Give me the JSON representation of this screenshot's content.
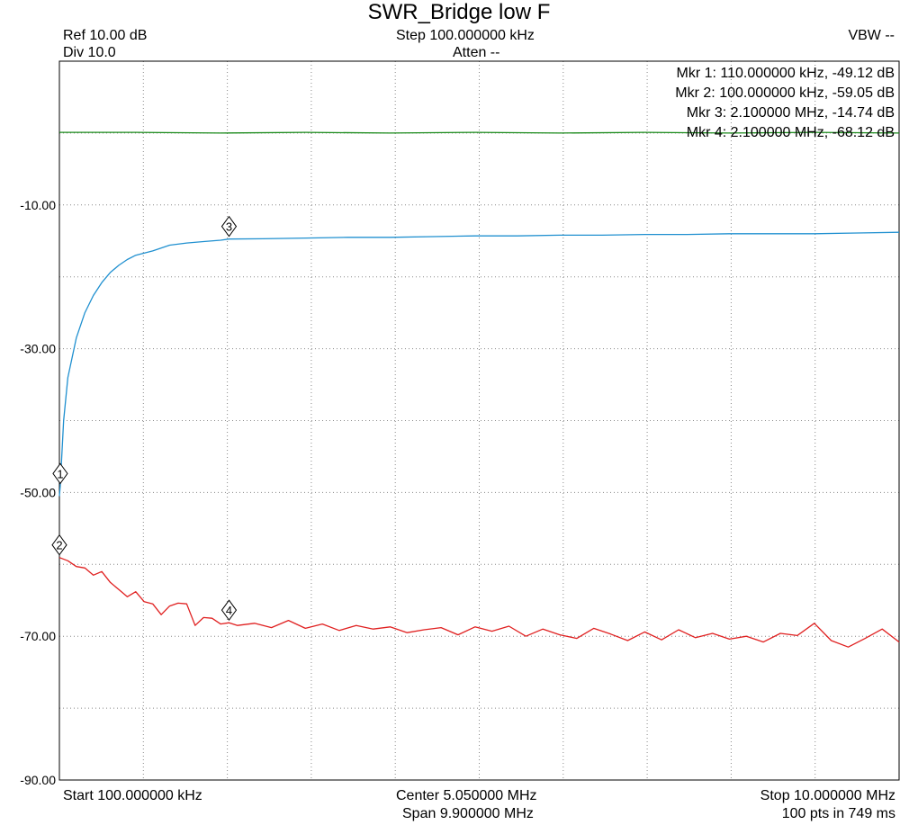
{
  "title": "SWR_Bridge low F",
  "header": {
    "ref": "Ref 10.00 dB",
    "div": "Div 10.0",
    "step": "Step 100.000000 kHz",
    "atten": "Atten --",
    "vbw": "VBW --"
  },
  "footer": {
    "start": "Start 100.000000 kHz",
    "center": "Center 5.050000 MHz",
    "span": "Span 9.900000 MHz",
    "stop": "Stop 10.000000 MHz",
    "points": "100 pts in 749 ms"
  },
  "markers": [
    {
      "id": "1",
      "label": "Mkr 1: 110.000000 kHz, -49.12 dB",
      "x": 0.11,
      "y": -49.12,
      "series": 1
    },
    {
      "id": "2",
      "label": "Mkr 2: 100.000000 kHz, -59.05 dB",
      "x": 0.1,
      "y": -59.05,
      "series": 2
    },
    {
      "id": "3",
      "label": "Mkr 3: 2.100000 MHz, -14.74 dB",
      "x": 2.1,
      "y": -14.74,
      "series": 1
    },
    {
      "id": "4",
      "label": "Mkr 4: 2.100000 MHz, -68.12 dB",
      "x": 2.1,
      "y": -68.12,
      "series": 2
    }
  ],
  "colors": {
    "grid": "#888888",
    "series_green": "#1a8a1a",
    "series_blue": "#2090d0",
    "series_red": "#e02020"
  },
  "chart_data": {
    "type": "line",
    "title": "SWR_Bridge low F",
    "x_unit": "MHz",
    "xlim": [
      0.1,
      10.0
    ],
    "ylim": [
      -90,
      10
    ],
    "ytick_labels": [
      "-10.00",
      "-30.00",
      "-50.00",
      "-70.00",
      "-90.00"
    ],
    "yticks": [
      -10,
      -30,
      -50,
      -70,
      -90
    ],
    "grid": true,
    "series": [
      {
        "color": "#1a8a1a",
        "x": [
          0.1,
          1.0,
          2.0,
          3.0,
          4.0,
          5.0,
          6.0,
          7.0,
          8.0,
          9.0,
          10.0
        ],
        "y": [
          0.1,
          0.1,
          0.0,
          0.1,
          0.0,
          0.1,
          0.0,
          0.1,
          0.0,
          0.1,
          0.0
        ]
      },
      {
        "color": "#2090d0",
        "x": [
          0.1,
          0.11,
          0.15,
          0.2,
          0.3,
          0.4,
          0.5,
          0.6,
          0.7,
          0.8,
          0.9,
          1.0,
          1.2,
          1.4,
          1.6,
          1.8,
          2.0,
          2.1,
          2.5,
          3.0,
          3.5,
          4.0,
          4.5,
          5.0,
          5.5,
          6.0,
          6.5,
          7.0,
          7.5,
          8.0,
          8.5,
          9.0,
          9.5,
          10.0
        ],
        "y": [
          -50.5,
          -49.12,
          -40.0,
          -34.0,
          -28.5,
          -25.0,
          -22.6,
          -20.8,
          -19.4,
          -18.4,
          -17.6,
          -17.0,
          -16.4,
          -15.6,
          -15.3,
          -15.1,
          -14.9,
          -14.74,
          -14.7,
          -14.6,
          -14.5,
          -14.5,
          -14.4,
          -14.3,
          -14.3,
          -14.2,
          -14.2,
          -14.1,
          -14.1,
          -14.0,
          -14.0,
          -14.0,
          -13.9,
          -13.8
        ]
      },
      {
        "color": "#e02020",
        "x": [
          0.1,
          0.2,
          0.3,
          0.4,
          0.5,
          0.6,
          0.7,
          0.8,
          0.9,
          1.0,
          1.1,
          1.2,
          1.3,
          1.4,
          1.5,
          1.6,
          1.7,
          1.8,
          1.9,
          2.0,
          2.1,
          2.2,
          2.4,
          2.6,
          2.8,
          3.0,
          3.2,
          3.4,
          3.6,
          3.8,
          4.0,
          4.2,
          4.4,
          4.6,
          4.8,
          5.0,
          5.2,
          5.4,
          5.6,
          5.8,
          6.0,
          6.2,
          6.4,
          6.6,
          6.8,
          7.0,
          7.2,
          7.4,
          7.6,
          7.8,
          8.0,
          8.2,
          8.4,
          8.6,
          8.8,
          9.0,
          9.2,
          9.4,
          9.6,
          9.8,
          10.0
        ],
        "y": [
          -59.05,
          -59.5,
          -60.3,
          -60.5,
          -61.5,
          -61.0,
          -62.5,
          -63.5,
          -64.5,
          -63.8,
          -65.2,
          -65.5,
          -67.0,
          -65.8,
          -65.4,
          -65.5,
          -68.5,
          -67.4,
          -67.5,
          -68.3,
          -68.12,
          -68.5,
          -68.2,
          -68.8,
          -67.8,
          -68.9,
          -68.3,
          -69.2,
          -68.5,
          -69.0,
          -68.7,
          -69.5,
          -69.1,
          -68.8,
          -69.8,
          -68.7,
          -69.3,
          -68.6,
          -70.0,
          -69.0,
          -69.8,
          -70.3,
          -68.9,
          -69.7,
          -70.6,
          -69.4,
          -70.5,
          -69.1,
          -70.2,
          -69.6,
          -70.4,
          -70.0,
          -70.8,
          -69.6,
          -69.9,
          -68.2,
          -70.6,
          -71.5,
          -70.3,
          -69.0,
          -70.8
        ]
      }
    ]
  }
}
